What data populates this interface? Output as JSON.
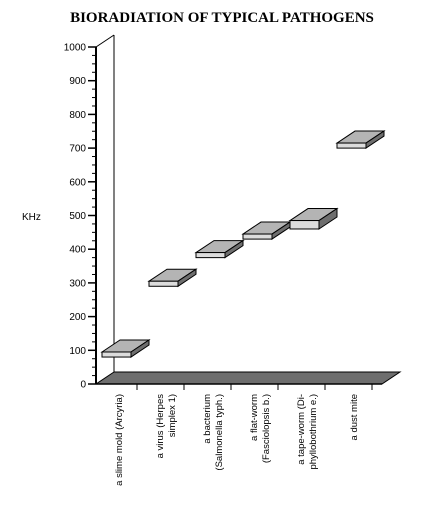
{
  "chart_data": {
    "type": "bar",
    "title": "BIORADIATION OF TYPICAL PATHOGENS",
    "ylabel": "KHz",
    "xlabel": "",
    "ylim": [
      0,
      1000
    ],
    "yticks": [
      "0",
      "100",
      "200",
      "300",
      "400",
      "500",
      "600",
      "700",
      "800",
      "900",
      "1000"
    ],
    "categories": [
      [
        "a slime mold (Arcyria)"
      ],
      [
        "a virus (Herpes",
        "simplex 1)"
      ],
      [
        "a bacterium",
        "(Salmonella typh.)"
      ],
      [
        "a flat-worm",
        "(Fasciolopsis b.)"
      ],
      [
        "a tape-worm (Di-",
        "phyllobothrium e.)"
      ],
      [
        "a dust mite"
      ]
    ],
    "ranges": [
      [
        80,
        95
      ],
      [
        290,
        305
      ],
      [
        375,
        390
      ],
      [
        430,
        445
      ],
      [
        460,
        485
      ],
      [
        700,
        715
      ]
    ],
    "grid": false,
    "legend": "none",
    "colors": {
      "bar_front": "#dcdcdc",
      "bar_top": "#b4b4b4",
      "bar_side": "#6e6e6e",
      "floor": "#6e6e6e",
      "axis": "#000000"
    }
  }
}
